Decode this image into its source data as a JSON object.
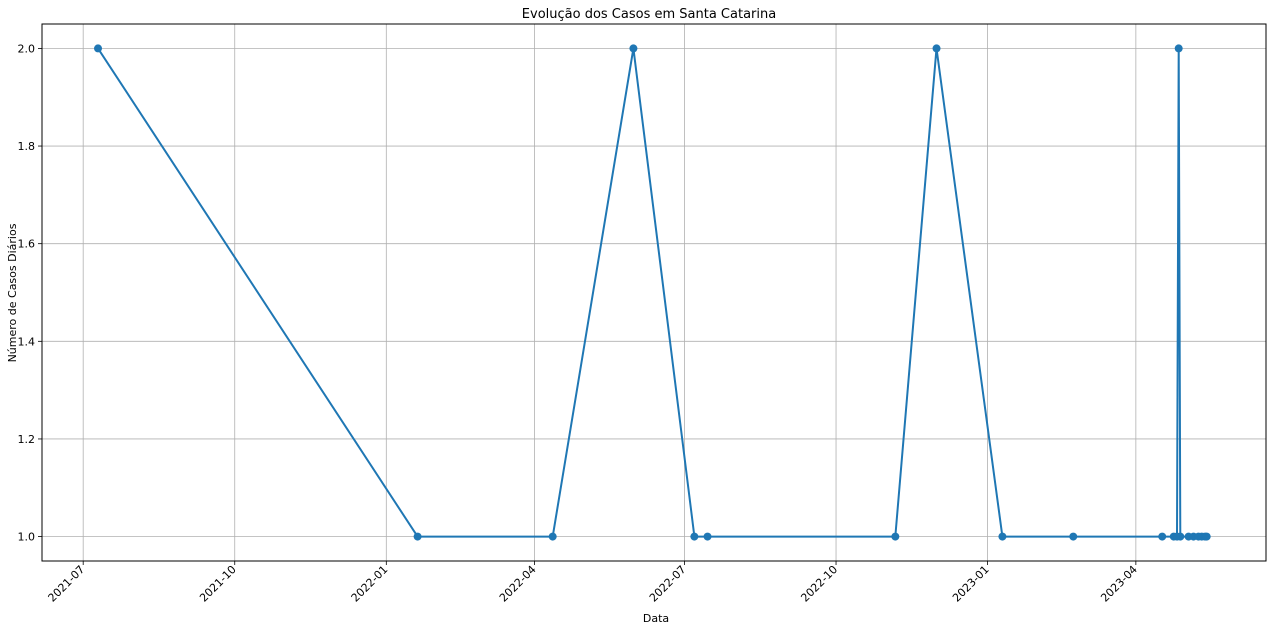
{
  "chart_data": {
    "type": "line",
    "title": "Evolução dos Casos em Santa Catarina",
    "xlabel": "Data",
    "ylabel": "Número de Casos Diários",
    "xlim": [
      "2021-06-06",
      "2023-06-19"
    ],
    "ylim": [
      0.95,
      2.05
    ],
    "grid": true,
    "x_ticks": [
      "2021-07",
      "2021-10",
      "2022-01",
      "2022-04",
      "2022-07",
      "2022-10",
      "2023-01",
      "2023-04"
    ],
    "y_ticks": [
      "1.0",
      "1.2",
      "1.4",
      "1.6",
      "1.8",
      "2.0"
    ],
    "color": "#1f77b4",
    "series": [
      {
        "x": [
          "2021-07-10",
          "2022-01-20",
          "2022-04-12",
          "2022-05-31",
          "2022-07-07",
          "2022-07-15",
          "2022-11-06",
          "2022-12-01",
          "2023-01-10",
          "2023-02-22",
          "2023-04-17",
          "2023-04-24",
          "2023-04-26",
          "2023-04-27",
          "2023-04-28",
          "2023-05-03",
          "2023-05-06",
          "2023-05-09",
          "2023-05-11",
          "2023-05-13",
          "2023-05-14"
        ],
        "y": [
          2,
          1,
          1,
          2,
          1,
          1,
          1,
          2,
          1,
          1,
          1,
          1,
          1,
          2,
          1,
          1,
          1,
          1,
          1,
          1,
          1
        ]
      }
    ]
  }
}
